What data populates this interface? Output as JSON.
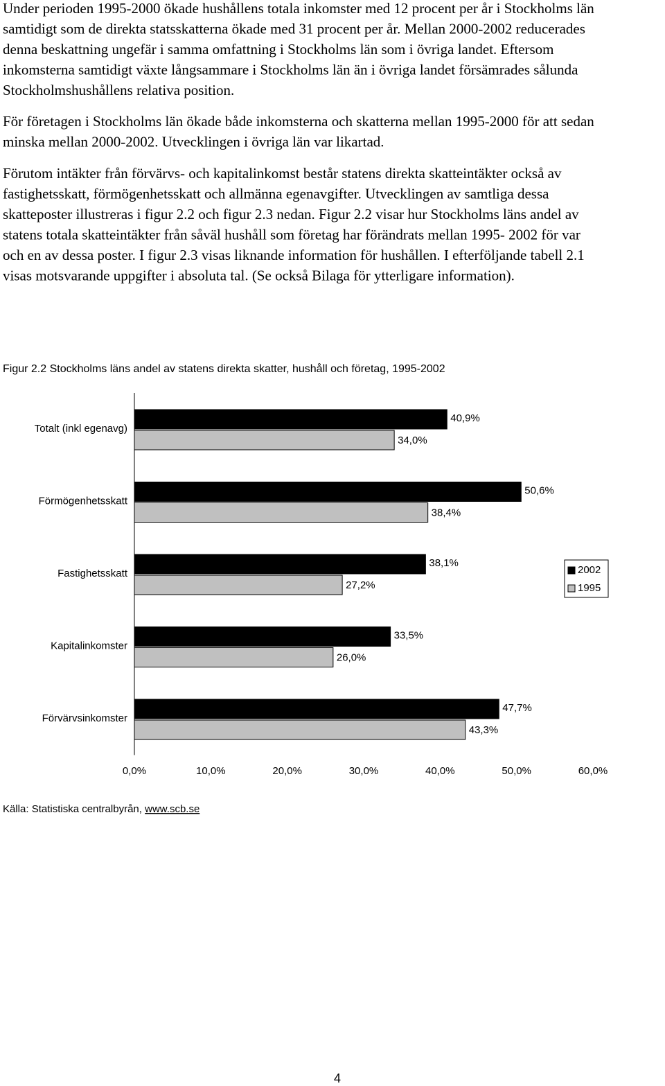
{
  "paragraphs": [
    [
      "Under perioden 1995-2000 ökade hushållens totala inkomster med 12 procent per år i Stockholms län",
      "samtidigt som de direkta statsskatterna ökade med 31 procent per år. Mellan 2000-2002 reducerades",
      "denna beskattning ungefär i samma omfattning i Stockholms län som i övriga landet. Eftersom",
      "inkomsterna samtidigt växte långsammare i Stockholms län än i övriga landet försämrades sålunda",
      "Stockholmshushållens relativa position."
    ],
    [
      "För företagen i Stockholms län ökade både inkomsterna och skatterna mellan 1995-2000 för att sedan",
      "minska mellan 2000-2002. Utvecklingen i övriga län var likartad."
    ],
    [
      "Förutom intäkter från förvärvs- och kapitalinkomst består statens direkta skatteintäkter också av",
      "fastighetsskatt, förmögenhetsskatt och allmänna egenavgifter. Utvecklingen av samtliga dessa",
      "skatteposter illustreras i figur 2.2 och figur 2.3 nedan. Figur 2.2 visar hur Stockholms läns andel av",
      "statens totala skatteintäkter från såväl hushåll som företag har förändrats mellan 1995- 2002 för var",
      "och en av dessa poster. I figur 2.3 visas liknande information för hushållen. I efterföljande tabell 2.1",
      "visas motsvarande uppgifter i absoluta tal. (Se också Bilaga för ytterligare information)."
    ]
  ],
  "chart_data": {
    "type": "bar",
    "orientation": "horizontal",
    "title": "Figur 2.2  Stockholms läns andel av statens direkta skatter, hushåll och företag, 1995-2002",
    "categories": [
      "Totalt (inkl egenavg)",
      "Förmögenhetsskatt",
      "Fastighetsskatt",
      "Kapitalinkomster",
      "Förvärvsinkomster"
    ],
    "series": [
      {
        "name": "2002",
        "color": "#000000",
        "values": [
          40.9,
          50.6,
          38.1,
          33.5,
          47.7
        ],
        "value_labels": [
          "40,9%",
          "50,6%",
          "38,1%",
          "33,5%",
          "47,7%"
        ]
      },
      {
        "name": "1995",
        "color": "#c0c0c0",
        "values": [
          34.0,
          38.4,
          27.2,
          26.0,
          43.3
        ],
        "value_labels": [
          "34,0%",
          "38,4%",
          "27,2%",
          "26,0%",
          "43,3%"
        ]
      }
    ],
    "xlim": [
      0,
      60
    ],
    "xticks": [
      {
        "value": 0,
        "label": "0,0%"
      },
      {
        "value": 10,
        "label": "10,0%"
      },
      {
        "value": 20,
        "label": "20,0%"
      },
      {
        "value": 30,
        "label": "30,0%"
      },
      {
        "value": 40,
        "label": "40,0%"
      },
      {
        "value": 50,
        "label": "50,0%"
      },
      {
        "value": 60,
        "label": "60,0%"
      }
    ],
    "legend": "right"
  },
  "source": {
    "text": "Källa: Statistiska centralbyrån,",
    "link": "www.scb.se"
  },
  "page_number": "4"
}
